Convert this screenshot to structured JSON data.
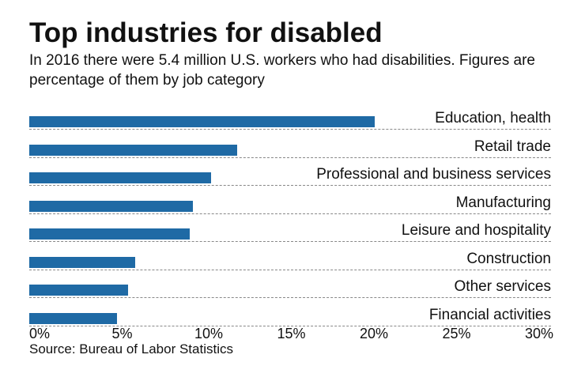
{
  "chart_data": {
    "type": "bar",
    "orientation": "horizontal",
    "title": "Top industries for disabled",
    "subtitle": "In 2016 there were 5.4 million U.S. workers who had disabilities. Figures are percentage of them by job category",
    "categories": [
      "Education, health",
      "Retail trade",
      "Professional and business services",
      "Manufacturing",
      "Leisure and hospitality",
      "Construction",
      "Other services",
      "Financial activities"
    ],
    "values": [
      20.9,
      12.6,
      11.0,
      9.9,
      9.7,
      6.4,
      6.0,
      5.3
    ],
    "xlim": [
      0,
      30
    ],
    "ticks": [
      "0%",
      "5%",
      "10%",
      "15%",
      "20%",
      "25%",
      "30%"
    ],
    "bar_color": "#1f6aa5",
    "source": "Source: Bureau of Labor Statistics"
  }
}
